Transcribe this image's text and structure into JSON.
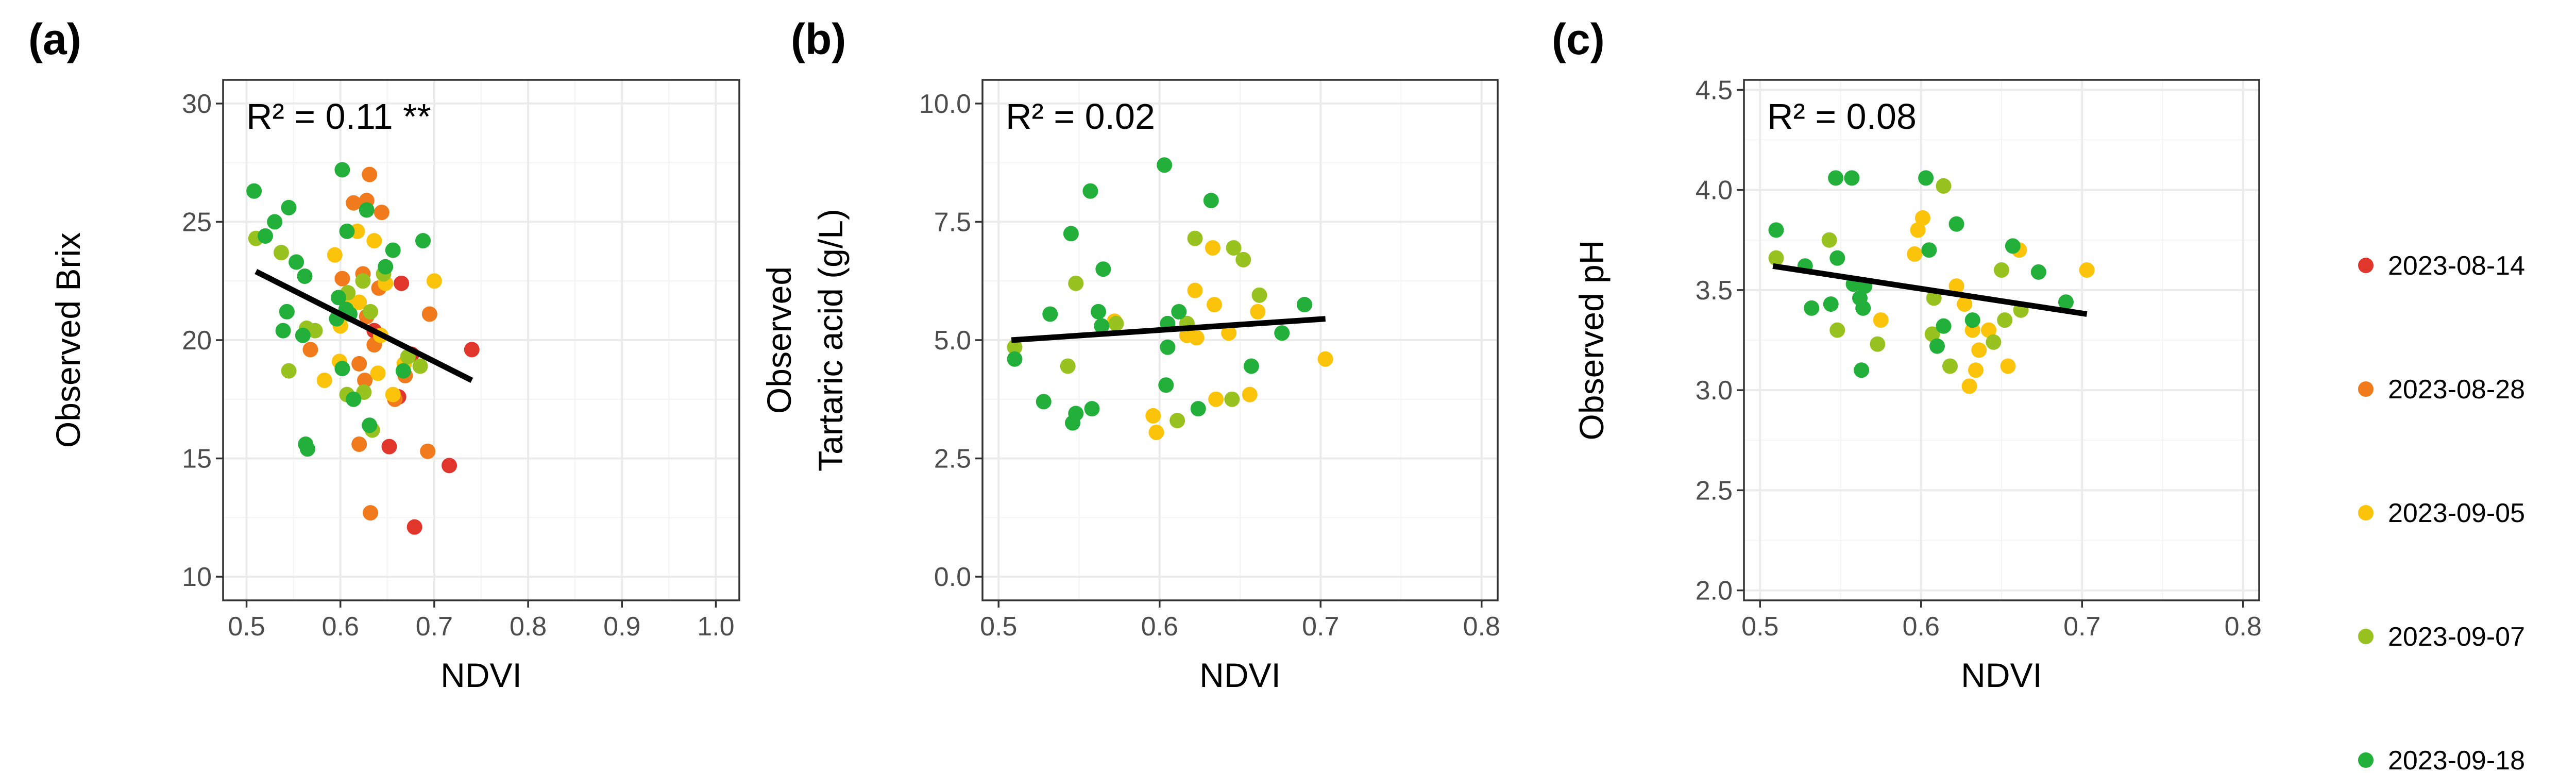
{
  "legend": {
    "items": [
      {
        "label": "2023-08-14",
        "color": "#e0362b"
      },
      {
        "label": "2023-08-28",
        "color": "#f07a1c"
      },
      {
        "label": "2023-09-05",
        "color": "#fbc30a"
      },
      {
        "label": "2023-09-07",
        "color": "#97c21f"
      },
      {
        "label": "2023-09-18",
        "color": "#22b03a"
      }
    ]
  },
  "chart_data": [
    {
      "type": "scatter",
      "panel_label": "(a)",
      "annotation": "R² = 0.11 **",
      "xlabel": "NDVI",
      "ylabel_lines": [
        "Observed Brix"
      ],
      "xlim": [
        0.475,
        1.025
      ],
      "ylim": [
        9.0,
        31.0
      ],
      "xticks": [
        0.5,
        0.6,
        0.7,
        0.8,
        0.9,
        1.0
      ],
      "xtick_labels": [
        "0.5",
        "0.6",
        "0.7",
        "0.8",
        "0.9",
        "1.0"
      ],
      "yticks": [
        10,
        15,
        20,
        25,
        30
      ],
      "ytick_labels": [
        "10",
        "15",
        "20",
        "25",
        "30"
      ],
      "fit_line": [
        [
          0.51,
          22.9
        ],
        [
          0.74,
          18.3
        ]
      ],
      "series": [
        {
          "date": "2023-08-14",
          "points": [
            [
              0.665,
              22.4
            ],
            [
              0.652,
              15.5
            ],
            [
              0.676,
              19.4
            ],
            [
              0.74,
              19.6
            ],
            [
              0.716,
              14.7
            ],
            [
              0.679,
              12.1
            ],
            [
              0.662,
              17.6
            ],
            [
              0.636,
              20.4
            ]
          ]
        },
        {
          "date": "2023-08-28",
          "points": [
            [
              0.614,
              25.8
            ],
            [
              0.628,
              25.9
            ],
            [
              0.631,
              27.0
            ],
            [
              0.644,
              25.4
            ],
            [
              0.624,
              22.8
            ],
            [
              0.602,
              22.6
            ],
            [
              0.628,
              21.0
            ],
            [
              0.641,
              22.2
            ],
            [
              0.62,
              19.0
            ],
            [
              0.568,
              19.6
            ],
            [
              0.636,
              19.8
            ],
            [
              0.658,
              17.5
            ],
            [
              0.669,
              18.5
            ],
            [
              0.695,
              21.1
            ],
            [
              0.693,
              15.3
            ],
            [
              0.62,
              15.6
            ],
            [
              0.632,
              12.7
            ],
            [
              0.626,
              18.3
            ]
          ]
        },
        {
          "date": "2023-09-05",
          "points": [
            [
              0.594,
              23.6
            ],
            [
              0.618,
              24.6
            ],
            [
              0.636,
              24.2
            ],
            [
              0.62,
              21.6
            ],
            [
              0.648,
              22.4
            ],
            [
              0.6,
              20.6
            ],
            [
              0.612,
              21.5
            ],
            [
              0.599,
              19.1
            ],
            [
              0.583,
              18.3
            ],
            [
              0.64,
              18.6
            ],
            [
              0.656,
              17.7
            ],
            [
              0.668,
              19.0
            ],
            [
              0.7,
              22.5
            ],
            [
              0.643,
              20.2
            ]
          ]
        },
        {
          "date": "2023-09-07",
          "points": [
            [
              0.51,
              24.3
            ],
            [
              0.537,
              23.7
            ],
            [
              0.545,
              18.7
            ],
            [
              0.564,
              20.5
            ],
            [
              0.573,
              20.4
            ],
            [
              0.608,
              22.0
            ],
            [
              0.624,
              22.5
            ],
            [
              0.646,
              22.8
            ],
            [
              0.672,
              19.3
            ],
            [
              0.607,
              17.7
            ],
            [
              0.625,
              17.8
            ],
            [
              0.634,
              16.2
            ],
            [
              0.685,
              18.9
            ],
            [
              0.632,
              21.2
            ]
          ]
        },
        {
          "date": "2023-09-18",
          "points": [
            [
              0.508,
              26.3
            ],
            [
              0.52,
              24.4
            ],
            [
              0.53,
              25.0
            ],
            [
              0.545,
              25.6
            ],
            [
              0.553,
              23.3
            ],
            [
              0.562,
              22.7
            ],
            [
              0.56,
              20.2
            ],
            [
              0.543,
              21.2
            ],
            [
              0.539,
              20.4
            ],
            [
              0.563,
              15.6
            ],
            [
              0.565,
              15.4
            ],
            [
              0.602,
              27.2
            ],
            [
              0.607,
              24.6
            ],
            [
              0.628,
              25.5
            ],
            [
              0.598,
              21.8
            ],
            [
              0.61,
              21.1
            ],
            [
              0.648,
              23.1
            ],
            [
              0.656,
              23.8
            ],
            [
              0.688,
              24.2
            ],
            [
              0.602,
              18.8
            ],
            [
              0.614,
              17.5
            ],
            [
              0.631,
              16.4
            ],
            [
              0.667,
              18.7
            ],
            [
              0.596,
              20.9
            ],
            [
              0.606,
              21.3
            ]
          ]
        }
      ]
    },
    {
      "type": "scatter",
      "panel_label": "(b)",
      "annotation": "R² = 0.02",
      "xlabel": "NDVI",
      "ylabel_lines": [
        "Observed",
        "Tartaric acid (g/L)"
      ],
      "xlim": [
        0.49,
        0.81
      ],
      "ylim": [
        -0.5,
        10.5
      ],
      "xticks": [
        0.5,
        0.6,
        0.7,
        0.8
      ],
      "xtick_labels": [
        "0.5",
        "0.6",
        "0.7",
        "0.8"
      ],
      "yticks": [
        0.0,
        2.5,
        5.0,
        7.5,
        10.0
      ],
      "ytick_labels": [
        "0.0",
        "2.5",
        "5.0",
        "7.5",
        "10.0"
      ],
      "fit_line": [
        [
          0.508,
          5.0
        ],
        [
          0.703,
          5.45
        ]
      ],
      "series": [
        {
          "date": "2023-09-05",
          "points": [
            [
              0.598,
              3.05
            ],
            [
              0.596,
              3.4
            ],
            [
              0.623,
              5.05
            ],
            [
              0.622,
              6.05
            ],
            [
              0.635,
              3.75
            ],
            [
              0.634,
              5.75
            ],
            [
              0.633,
              6.95
            ],
            [
              0.656,
              3.85
            ],
            [
              0.661,
              5.6
            ],
            [
              0.703,
              4.6
            ],
            [
              0.572,
              5.4
            ],
            [
              0.617,
              5.1
            ],
            [
              0.643,
              5.15
            ]
          ]
        },
        {
          "date": "2023-09-07",
          "points": [
            [
              0.51,
              4.85
            ],
            [
              0.543,
              4.45
            ],
            [
              0.548,
              6.2
            ],
            [
              0.573,
              5.35
            ],
            [
              0.617,
              5.35
            ],
            [
              0.622,
              7.15
            ],
            [
              0.646,
              6.95
            ],
            [
              0.652,
              6.7
            ],
            [
              0.662,
              5.95
            ],
            [
              0.645,
              3.75
            ],
            [
              0.611,
              3.3
            ]
          ]
        },
        {
          "date": "2023-09-18",
          "points": [
            [
              0.51,
              4.6
            ],
            [
              0.528,
              3.7
            ],
            [
              0.532,
              5.55
            ],
            [
              0.545,
              7.25
            ],
            [
              0.548,
              3.45
            ],
            [
              0.546,
              3.25
            ],
            [
              0.557,
              8.15
            ],
            [
              0.558,
              3.55
            ],
            [
              0.562,
              5.6
            ],
            [
              0.564,
              5.3
            ],
            [
              0.565,
              6.5
            ],
            [
              0.603,
              8.7
            ],
            [
              0.612,
              5.6
            ],
            [
              0.605,
              4.85
            ],
            [
              0.604,
              4.05
            ],
            [
              0.624,
              3.55
            ],
            [
              0.632,
              7.95
            ],
            [
              0.657,
              4.45
            ],
            [
              0.676,
              5.15
            ],
            [
              0.69,
              5.75
            ],
            [
              0.605,
              5.35
            ]
          ]
        }
      ]
    },
    {
      "type": "scatter",
      "panel_label": "(c)",
      "annotation": "R² = 0.08",
      "xlabel": "NDVI",
      "ylabel_lines": [
        "Observed pH"
      ],
      "xlim": [
        0.49,
        0.81
      ],
      "ylim": [
        1.95,
        4.55
      ],
      "xticks": [
        0.5,
        0.6,
        0.7,
        0.8
      ],
      "xtick_labels": [
        "0.5",
        "0.6",
        "0.7",
        "0.8"
      ],
      "yticks": [
        2.0,
        2.5,
        3.0,
        3.5,
        4.0,
        4.5
      ],
      "ytick_labels": [
        "2.0",
        "2.5",
        "3.0",
        "3.5",
        "4.0",
        "4.5"
      ],
      "fit_line": [
        [
          0.508,
          3.62
        ],
        [
          0.703,
          3.38
        ]
      ],
      "series": [
        {
          "date": "2023-09-05",
          "points": [
            [
              0.596,
              3.68
            ],
            [
              0.598,
              3.8
            ],
            [
              0.601,
              3.86
            ],
            [
              0.622,
              3.52
            ],
            [
              0.627,
              3.43
            ],
            [
              0.632,
              3.3
            ],
            [
              0.636,
              3.2
            ],
            [
              0.63,
              3.02
            ],
            [
              0.634,
              3.1
            ],
            [
              0.642,
              3.3
            ],
            [
              0.654,
              3.12
            ],
            [
              0.661,
              3.7
            ],
            [
              0.703,
              3.6
            ],
            [
              0.575,
              3.35
            ]
          ]
        },
        {
          "date": "2023-09-07",
          "points": [
            [
              0.51,
              3.66
            ],
            [
              0.543,
              3.75
            ],
            [
              0.548,
              3.3
            ],
            [
              0.573,
              3.23
            ],
            [
              0.607,
              3.28
            ],
            [
              0.608,
              3.46
            ],
            [
              0.614,
              4.02
            ],
            [
              0.618,
              3.12
            ],
            [
              0.645,
              3.24
            ],
            [
              0.65,
              3.6
            ],
            [
              0.652,
              3.35
            ],
            [
              0.662,
              3.4
            ]
          ]
        },
        {
          "date": "2023-09-18",
          "points": [
            [
              0.51,
              3.8
            ],
            [
              0.528,
              3.62
            ],
            [
              0.532,
              3.41
            ],
            [
              0.544,
              3.43
            ],
            [
              0.547,
              4.06
            ],
            [
              0.548,
              3.66
            ],
            [
              0.557,
              4.06
            ],
            [
              0.558,
              3.53
            ],
            [
              0.562,
              3.46
            ],
            [
              0.563,
              3.1
            ],
            [
              0.564,
              3.41
            ],
            [
              0.565,
              3.52
            ],
            [
              0.603,
              4.06
            ],
            [
              0.605,
              3.7
            ],
            [
              0.61,
              3.22
            ],
            [
              0.614,
              3.32
            ],
            [
              0.622,
              3.83
            ],
            [
              0.657,
              3.72
            ],
            [
              0.673,
              3.59
            ],
            [
              0.69,
              3.44
            ],
            [
              0.632,
              3.35
            ]
          ]
        }
      ]
    }
  ]
}
